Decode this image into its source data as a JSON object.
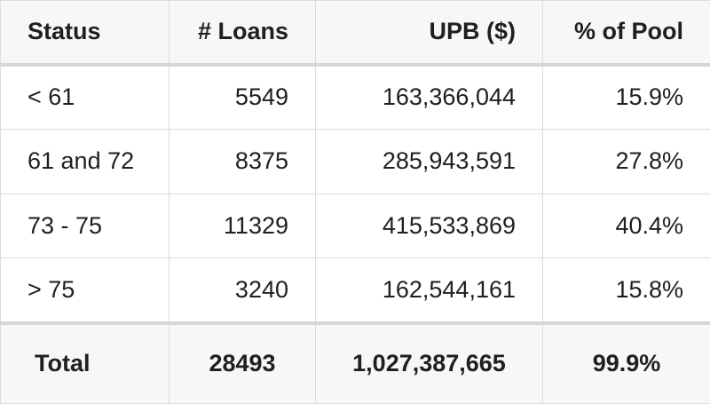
{
  "table": {
    "headers": [
      "Status",
      "# Loans",
      "UPB ($)",
      "% of Pool"
    ],
    "rows": [
      [
        "< 61",
        "5549",
        "163,366,044",
        "15.9%"
      ],
      [
        "61 and 72",
        "8375",
        "285,943,591",
        "27.8%"
      ],
      [
        "73 - 75",
        "11329",
        "415,533,869",
        "40.4%"
      ],
      [
        "> 75",
        "3240",
        "162,544,161",
        "15.8%"
      ]
    ],
    "total": [
      "Total",
      "28493",
      "1,027,387,665",
      "99.9%"
    ]
  }
}
